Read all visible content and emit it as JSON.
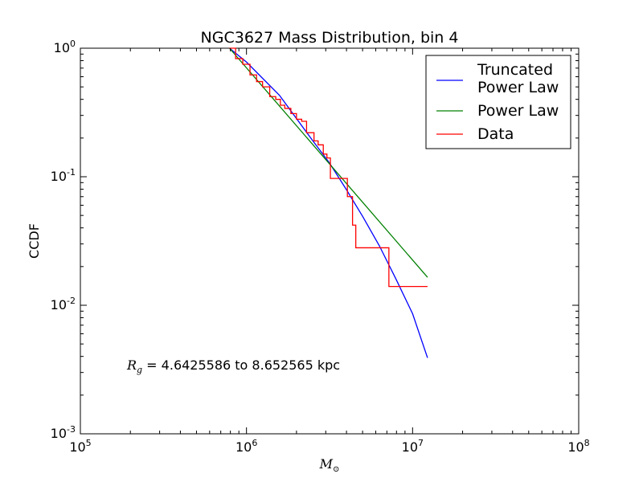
{
  "chart_data": {
    "type": "line",
    "title": "NGC3627 Mass Distribution, bin 4",
    "xlabel": "M",
    "xlabel_sub": "⊙",
    "ylabel": "CCDF",
    "xscale": "log",
    "yscale": "log",
    "xlim": [
      100000,
      100000000
    ],
    "ylim": [
      0.001,
      1
    ],
    "x_ticks": [
      {
        "base": "10",
        "exp": "5"
      },
      {
        "base": "10",
        "exp": "6"
      },
      {
        "base": "10",
        "exp": "7"
      },
      {
        "base": "10",
        "exp": "8"
      }
    ],
    "y_ticks": [
      {
        "base": "10",
        "exp": "-3"
      },
      {
        "base": "10",
        "exp": "-2"
      },
      {
        "base": "10",
        "exp": "-1"
      },
      {
        "base": "10",
        "exp": "0"
      }
    ],
    "grid": false,
    "legend_position": "top-right",
    "annotation": {
      "symbol": "R",
      "symbol_sub": "g",
      "text": " = 4.6425586 to 8.652565 kpc"
    },
    "series": [
      {
        "name": "Truncated\nPower Law",
        "color": "#0000ff",
        "kind": "line",
        "x": [
          790000,
          1000000,
          1580000,
          2510000,
          3160000,
          3980000,
          5010000,
          6310000,
          7940000,
          10000000,
          12300000
        ],
        "y": [
          1.0,
          0.78,
          0.43,
          0.19,
          0.128,
          0.08,
          0.049,
          0.029,
          0.016,
          0.0086,
          0.0039
        ]
      },
      {
        "name": "Power Law",
        "color": "#008000",
        "kind": "line",
        "x": [
          790000,
          12300000
        ],
        "y": [
          1.0,
          0.0165
        ]
      },
      {
        "name": "Data",
        "color": "#ff0000",
        "kind": "step",
        "x": [
          790000,
          860000,
          950000,
          1050000,
          1150000,
          1250000,
          1380000,
          1500000,
          1600000,
          1700000,
          1850000,
          2000000,
          2150000,
          2300000,
          2550000,
          2700000,
          2900000,
          3050000,
          3200000,
          4050000,
          4350000,
          4550000,
          7200000,
          12300000
        ],
        "y": [
          1.0,
          0.83,
          0.75,
          0.62,
          0.55,
          0.5,
          0.42,
          0.4,
          0.36,
          0.34,
          0.31,
          0.28,
          0.27,
          0.22,
          0.19,
          0.177,
          0.15,
          0.14,
          0.097,
          0.07,
          0.042,
          0.028,
          0.014,
          0.014
        ]
      }
    ]
  }
}
